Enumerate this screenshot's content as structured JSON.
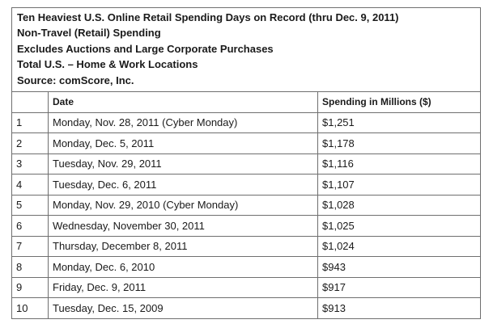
{
  "header": {
    "lines": [
      "Ten Heaviest U.S. Online Retail Spending Days on Record (thru Dec. 9, 2011)",
      "Non-Travel (Retail) Spending",
      "Excludes Auctions and Large Corporate Purchases",
      "Total U.S. – Home & Work Locations",
      "Source: comScore, Inc."
    ]
  },
  "table": {
    "columns": [
      "",
      "Date",
      "Spending in Millions ($)"
    ],
    "rows": [
      {
        "rank": "1",
        "date": "Monday, Nov. 28, 2011 (Cyber Monday)",
        "spending": "$1,251"
      },
      {
        "rank": "2",
        "date": "Monday, Dec. 5, 2011",
        "spending": "$1,178"
      },
      {
        "rank": "3",
        "date": "Tuesday, Nov. 29, 2011",
        "spending": "$1,116"
      },
      {
        "rank": "4",
        "date": "Tuesday, Dec. 6, 2011",
        "spending": "$1,107"
      },
      {
        "rank": "5",
        "date": "Monday, Nov. 29, 2010 (Cyber Monday)",
        "spending": "$1,028"
      },
      {
        "rank": "6",
        "date": "Wednesday, November 30, 2011",
        "spending": "$1,025"
      },
      {
        "rank": "7",
        "date": "Thursday, December 8, 2011",
        "spending": "$1,024"
      },
      {
        "rank": "8",
        "date": "Monday, Dec. 6, 2010",
        "spending": "$943"
      },
      {
        "rank": "9",
        "date": "Friday, Dec. 9, 2011",
        "spending": "$917"
      },
      {
        "rank": "10",
        "date": "Tuesday, Dec. 15, 2009",
        "spending": "$913"
      }
    ]
  }
}
